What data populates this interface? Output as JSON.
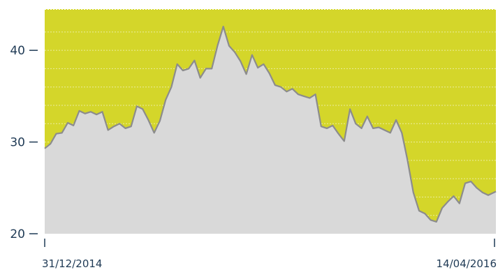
{
  "chart_data": {
    "type": "area",
    "title": "",
    "xlabel": "",
    "ylabel": "",
    "x_start_label": "31/12/2014",
    "x_end_label": "14/04/2016",
    "ylim": [
      20,
      44.5
    ],
    "yticks": [
      20,
      30,
      40
    ],
    "grid": "dashed horizontal",
    "colors": {
      "background_fill": "#d4d62a",
      "area_fill": "#d9d9d9",
      "line": "#8c8c8c",
      "axis": "#1f3a55"
    },
    "series": [
      {
        "x": [
          "2014-12-31",
          "2015-01-06",
          "2015-01-12",
          "2015-01-18",
          "2015-01-24",
          "2015-01-30",
          "2015-02-05",
          "2015-02-11",
          "2015-02-17",
          "2015-02-23",
          "2015-03-01",
          "2015-03-07",
          "2015-03-13",
          "2015-03-19",
          "2015-03-25",
          "2015-03-31",
          "2015-04-06",
          "2015-04-12",
          "2015-04-18",
          "2015-04-24",
          "2015-04-30",
          "2015-05-06",
          "2015-05-12",
          "2015-05-18",
          "2015-05-24",
          "2015-05-30",
          "2015-06-05",
          "2015-06-11",
          "2015-06-17",
          "2015-06-23",
          "2015-06-29",
          "2015-07-05",
          "2015-07-11",
          "2015-07-17",
          "2015-07-23",
          "2015-07-29",
          "2015-08-04",
          "2015-08-10",
          "2015-08-16",
          "2015-08-22",
          "2015-08-28",
          "2015-09-03",
          "2015-09-09",
          "2015-09-15",
          "2015-09-21",
          "2015-09-27",
          "2015-10-03",
          "2015-10-09",
          "2015-10-15",
          "2015-10-21",
          "2015-10-27",
          "2015-11-02",
          "2015-11-08",
          "2015-11-14",
          "2015-11-20",
          "2015-11-26",
          "2015-12-02",
          "2015-12-08",
          "2015-12-14",
          "2015-12-20",
          "2015-12-26",
          "2016-01-01",
          "2016-01-07",
          "2016-01-13",
          "2016-01-19",
          "2016-01-25",
          "2016-01-31",
          "2016-02-06",
          "2016-02-12",
          "2016-02-18",
          "2016-02-24",
          "2016-03-01",
          "2016-03-07",
          "2016-03-13",
          "2016-03-19",
          "2016-03-25",
          "2016-03-31",
          "2016-04-06",
          "2016-04-14"
        ],
        "y": [
          29.3,
          29.8,
          30.9,
          31.0,
          32.1,
          31.8,
          33.4,
          33.1,
          33.3,
          33.0,
          33.3,
          31.3,
          31.7,
          32.0,
          31.5,
          31.7,
          33.9,
          33.6,
          32.4,
          31.0,
          32.3,
          34.6,
          36.0,
          38.5,
          37.8,
          38.0,
          38.9,
          37.0,
          38.0,
          38.0,
          40.5,
          42.6,
          40.5,
          39.8,
          38.8,
          37.4,
          39.5,
          38.1,
          38.5,
          37.5,
          36.2,
          36.0,
          35.5,
          35.8,
          35.2,
          35.0,
          34.8,
          35.2,
          31.7,
          31.5,
          31.8,
          30.9,
          30.1,
          33.6,
          32.0,
          31.5,
          32.8,
          31.5,
          31.6,
          31.3,
          31.0,
          32.4,
          31.0,
          28.0,
          24.5,
          22.5,
          22.2,
          21.5,
          21.3,
          22.8,
          23.5,
          24.1,
          23.3,
          25.5,
          25.7,
          25.0,
          24.5,
          24.2,
          24.6
        ]
      }
    ]
  }
}
